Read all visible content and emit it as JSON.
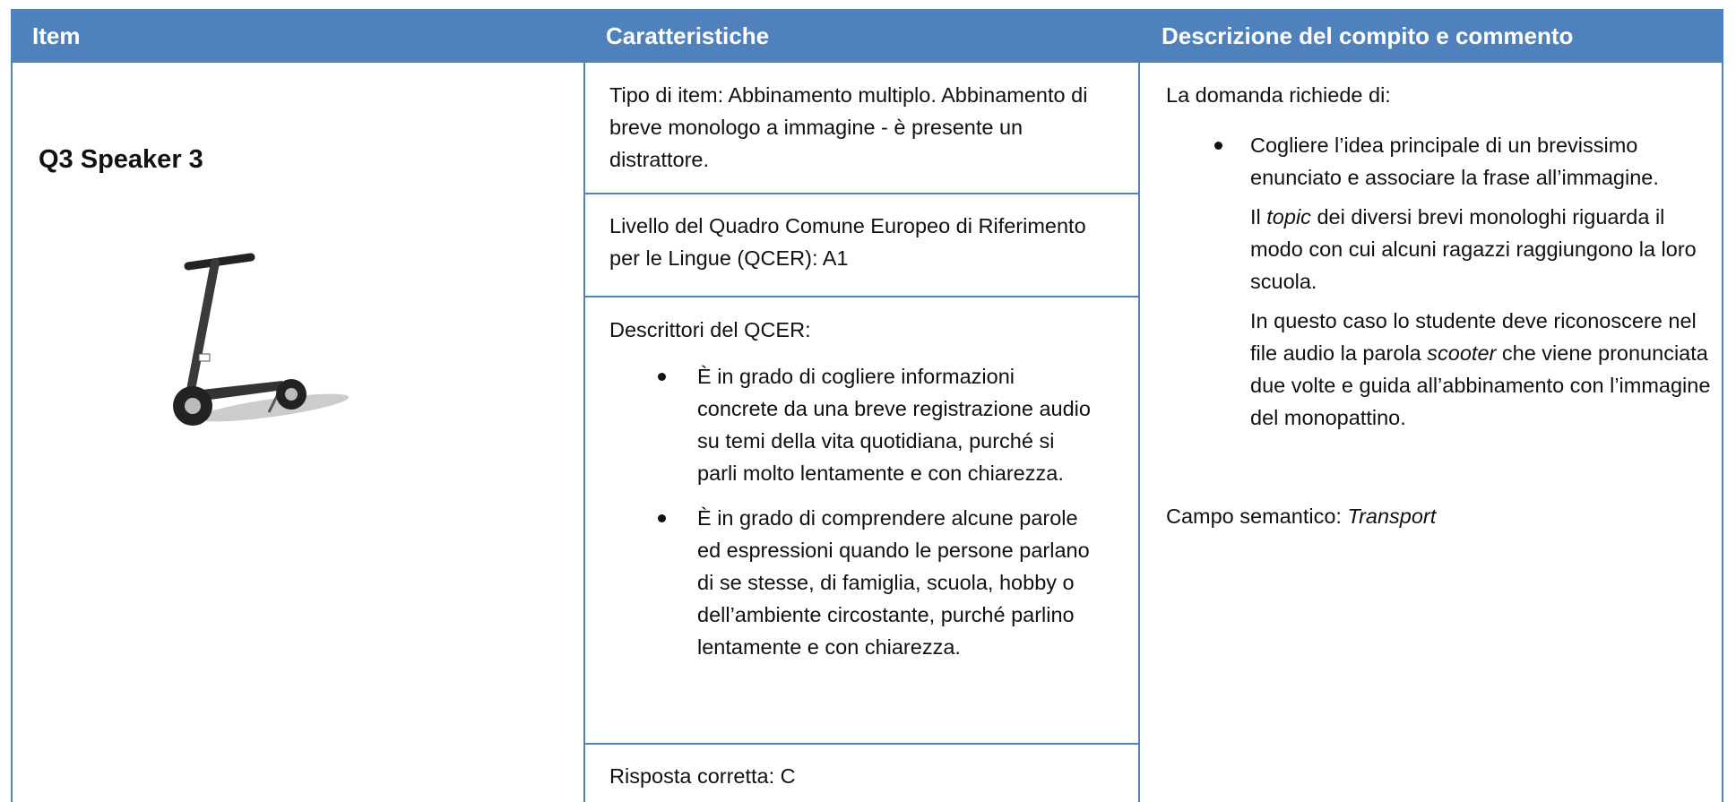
{
  "header": {
    "item": "Item",
    "caratteristiche": "Caratteristiche",
    "descrizione": "Descrizione del compito e commento"
  },
  "item": {
    "label": "Q3 Speaker 3"
  },
  "caratteristiche": {
    "tipo": "Tipo di item: Abbinamento multiplo. Abbinamento di breve monologo a immagine - è presente un distrattore.",
    "livello": "Livello del Quadro Comune Europeo di Riferimento per le Lingue (QCER): A1",
    "descrittori": {
      "title": "Descrittori del QCER:",
      "bullets": [
        "È in grado di cogliere informazioni concrete da una breve registrazione audio su temi della vita quotidiana, purché si parli molto lentamente e con chiarezza.",
        "È in grado di comprendere alcune parole ed espressioni quando le persone parlano di se stesse, di famiglia, scuola, hobby o dell’ambiente circostante, purché parlino lentamente e con chiarezza."
      ]
    },
    "risposta": "Risposta corretta: C"
  },
  "descrizione": {
    "intro": "La domanda richiede di:",
    "bullet": "Cogliere l’idea principale di un brevissimo enunciato e associare la frase all’immagine.",
    "topic": [
      "Il ",
      "topic",
      " dei diversi brevi monologhi riguarda il modo con cui alcuni ragazzi raggiungono la loro scuola."
    ],
    "caso": [
      "In questo caso lo studente deve riconoscere nel file audio la parola ",
      "scooter",
      " che viene pronunciata due volte e guida all’abbinamento con l’immagine del monopattino."
    ],
    "campo": [
      "Campo semantico: ",
      "Transport"
    ]
  }
}
